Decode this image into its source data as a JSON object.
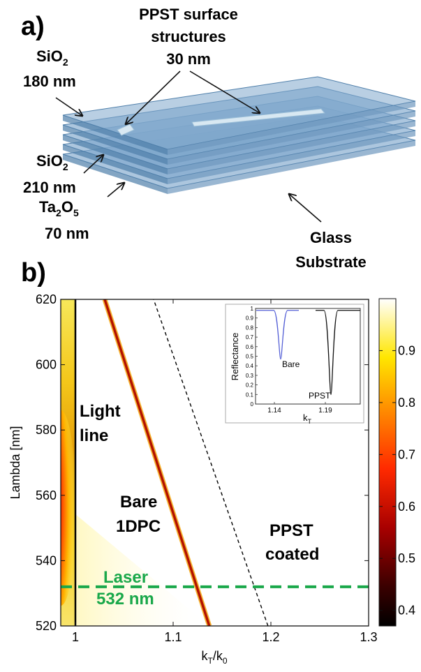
{
  "panel_a": {
    "label": "a)",
    "annotations": {
      "ppst": {
        "lines": [
          "PPST surface",
          "structures",
          "30 nm"
        ]
      },
      "sio2_top": {
        "formula": [
          "SiO",
          "2"
        ],
        "thickness": "180 nm"
      },
      "sio2_mid": {
        "formula": [
          "SiO",
          "2"
        ],
        "thickness": "210 nm"
      },
      "ta2o5": {
        "formula": [
          "Ta",
          "2",
          "O",
          "5"
        ],
        "thickness": "70 nm"
      },
      "glass": {
        "lines": [
          "Glass",
          "Substrate"
        ]
      }
    },
    "colors": {
      "layer_fill": "#7fa8cc",
      "layer_stroke": "#4f7faa",
      "ppst_strip": "#d8e8f2"
    }
  },
  "panel_b": {
    "label": "b)",
    "annotations": {
      "light_line": [
        "Light",
        "line"
      ],
      "bare": [
        "Bare",
        "1DPC"
      ],
      "ppst": [
        "PPST",
        "coated"
      ],
      "laser": [
        "Laser",
        "532 nm"
      ]
    },
    "colors": {
      "laser": "#1aa84a",
      "bare_line": "#b31200"
    }
  },
  "chart_data": [
    {
      "type": "heatmap",
      "xlabel_parts": [
        "k",
        "T",
        "/k",
        "0"
      ],
      "ylabel": "Lambda [nm]",
      "xlim": [
        0.985,
        1.3
      ],
      "ylim": [
        520,
        620
      ],
      "xticks": [
        "1",
        "1.1",
        "1.2",
        "1.3"
      ],
      "xtick_values": [
        1.0,
        1.1,
        1.2,
        1.3
      ],
      "yticks": [
        "520",
        "540",
        "560",
        "580",
        "600",
        "620"
      ],
      "ytick_values": [
        520,
        540,
        560,
        580,
        600,
        620
      ],
      "colormap": "hot",
      "colorbar": {
        "ticks": [
          "0.4",
          "0.5",
          "0.6",
          "0.7",
          "0.8",
          "0.9"
        ],
        "values": [
          0.4,
          0.5,
          0.6,
          0.7,
          0.8,
          0.9
        ],
        "range": [
          0.37,
          1.0
        ]
      },
      "lines": [
        {
          "name": "Light line",
          "style": "solid",
          "color": "#000000",
          "x": [
            1.0,
            1.0
          ],
          "y": [
            520,
            620
          ]
        },
        {
          "name": "Bare 1DPC",
          "style": "solid",
          "color": "#b31200",
          "x": [
            1.137,
            1.03
          ],
          "y": [
            520,
            620
          ]
        },
        {
          "name": "PPST coated",
          "style": "dashed",
          "color": "#000000",
          "x": [
            1.197,
            1.08
          ],
          "y": [
            520,
            620
          ]
        },
        {
          "name": "Laser 532 nm",
          "style": "dashed",
          "color": "#1aa84a",
          "x": [
            0.985,
            1.3
          ],
          "y": [
            532,
            532
          ]
        }
      ]
    },
    {
      "type": "line",
      "ylabel": "Reflectance",
      "xlabel_parts": [
        "k",
        "T"
      ],
      "xticks": [
        "1.14",
        "1.19"
      ],
      "yticks": [
        "1",
        "0.9",
        "0.8",
        "0.7",
        "0.6",
        "0.5",
        "0.4",
        "0.3",
        "0.2",
        "0.1",
        "0"
      ],
      "ytick_values": [
        1,
        0.9,
        0.8,
        0.7,
        0.6,
        0.5,
        0.4,
        0.3,
        0.2,
        0.1,
        0
      ],
      "series": [
        {
          "name": "Bare",
          "color": "#5560d6",
          "center": 1.14,
          "min": 0.47
        },
        {
          "name": "PPST",
          "color": "#111111",
          "center": 1.19,
          "min": 0.1
        }
      ]
    }
  ]
}
